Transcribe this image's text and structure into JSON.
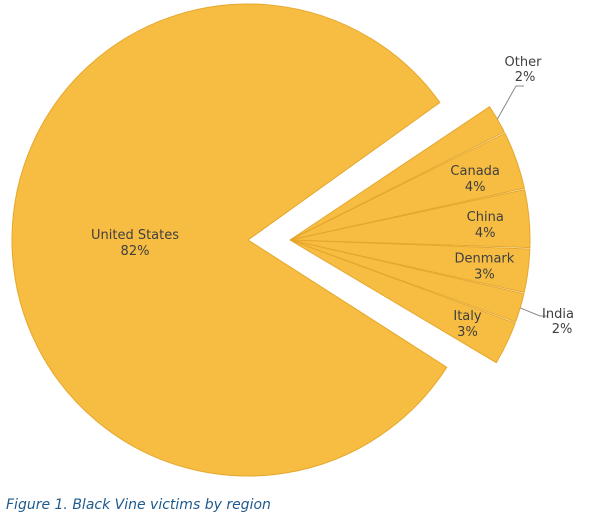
{
  "chart_data": {
    "type": "pie",
    "categories": [
      "United States",
      "Other",
      "Canada",
      "China",
      "Denmark",
      "India",
      "Italy"
    ],
    "values": [
      82,
      2,
      4,
      4,
      3,
      2,
      3
    ],
    "value_labels": [
      "82%",
      "2%",
      "4%",
      "4%",
      "3%",
      "2%",
      "3%"
    ],
    "exploded": [
      "Other",
      "Canada",
      "China",
      "Denmark",
      "India",
      "Italy"
    ],
    "slice_color": "#f7bd42",
    "label_color": "#3f3f3f",
    "legend": "none"
  },
  "caption": "Figure 1. Black Vine victims by region",
  "caption_color": "#1f5a8c"
}
